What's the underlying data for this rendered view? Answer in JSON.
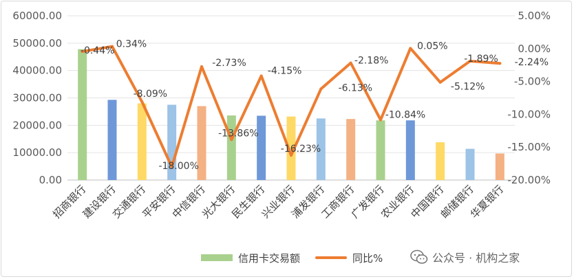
{
  "chart_data": {
    "type": "bar",
    "categories": [
      "招商银行",
      "建设银行",
      "交通银行",
      "平安银行",
      "中信银行",
      "光大银行",
      "民生银行",
      "兴业银行",
      "浦发银行",
      "工商银行",
      "广发银行",
      "农业银行",
      "中国银行",
      "邮储银行",
      "华夏银行"
    ],
    "series": [
      {
        "name": "信用卡交易额",
        "type": "bar",
        "axis": "left",
        "values": [
          47800,
          29300,
          28000,
          27500,
          27000,
          23600,
          23500,
          23200,
          22500,
          22300,
          21800,
          21800,
          13800,
          11400,
          9700
        ],
        "colors": [
          "#a9d18e",
          "#6f98d8",
          "#ffd966",
          "#9dc3e6",
          "#f4b183",
          "#a9d18e",
          "#6f98d8",
          "#ffd966",
          "#9dc3e6",
          "#f4b183",
          "#a9d18e",
          "#6f98d8",
          "#ffd966",
          "#9dc3e6",
          "#f4b183"
        ]
      },
      {
        "name": "同比%",
        "type": "line",
        "axis": "right",
        "color": "#ed7d31",
        "values": [
          -0.44,
          0.34,
          -8.09,
          -18.0,
          -2.73,
          -13.86,
          -4.15,
          -16.23,
          -6.13,
          -2.18,
          -10.84,
          0.05,
          -5.12,
          -1.89,
          -2.24
        ],
        "labels": [
          "-0.44%",
          "0.34%",
          "-8.09%",
          "-18.00%",
          "-2.73%",
          "-13.86%",
          "-4.15%",
          "-16.23%",
          "-6.13%",
          "-2.18%",
          "-10.84%",
          "0.05%",
          "-5.12%",
          "-1.89%",
          "-2.24%"
        ]
      }
    ],
    "y_left": {
      "ylim": [
        0,
        60000
      ],
      "ticks": [
        0,
        10000,
        20000,
        30000,
        40000,
        50000,
        60000
      ],
      "tick_labels": [
        "0.00",
        "10000.00",
        "20000.00",
        "30000.00",
        "40000.00",
        "50000.00",
        "60000.00"
      ]
    },
    "y_right": {
      "ylim": [
        -20,
        5
      ],
      "ticks": [
        -20,
        -15,
        -10,
        -5,
        0,
        5
      ],
      "tick_labels": [
        "-20.00%",
        "-15.00%",
        "-10.00%",
        "-5.00%",
        "0.00%",
        "5.00%"
      ]
    },
    "grid": true,
    "legend": {
      "placement": "bottom",
      "entries": [
        "信用卡交易额",
        "同比%"
      ]
    },
    "title": ""
  },
  "watermark": {
    "text": "公众号 · 机构之家",
    "icon": "wechat-icon"
  }
}
